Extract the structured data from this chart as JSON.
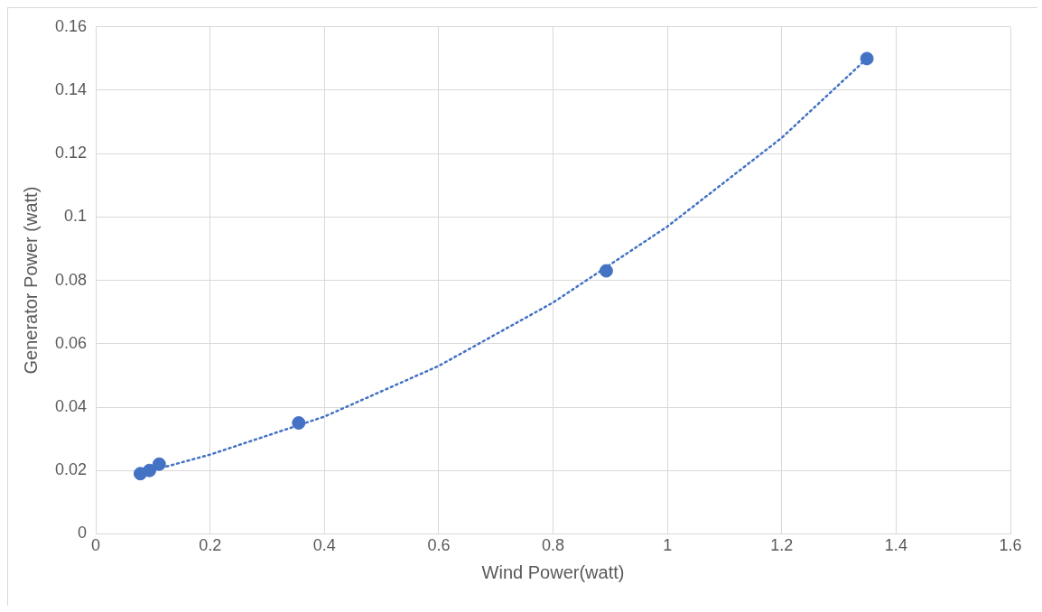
{
  "chart_data": {
    "type": "scatter",
    "xlabel": "Wind Power(watt)",
    "ylabel": "Generator Power (watt)",
    "xlim": [
      0,
      1.6
    ],
    "xticks": [
      0,
      0.2,
      0.4,
      0.6,
      0.8,
      1,
      1.2,
      1.4,
      1.6
    ],
    "ylim": [
      0,
      0.16
    ],
    "yticks": [
      0,
      0.02,
      0.04,
      0.06,
      0.08,
      0.1,
      0.12,
      0.14,
      0.16
    ],
    "grid": true,
    "legend": false,
    "series": [
      {
        "type": "line",
        "color": "#4472c4",
        "marker": "none",
        "line_style": "dotted",
        "x": [
          0.078,
          0.2,
          0.4,
          0.6,
          0.8,
          1.0,
          1.2,
          1.349
        ],
        "values": [
          0.019,
          0.025,
          0.037,
          0.053,
          0.073,
          0.097,
          0.125,
          0.15
        ]
      },
      {
        "color": "#4472c4",
        "marker": "circle",
        "x": [
          0.078,
          0.094,
          0.111,
          0.355,
          0.893,
          1.349
        ],
        "values": [
          0.019,
          0.02,
          0.022,
          0.035,
          0.083,
          0.15
        ]
      }
    ]
  }
}
